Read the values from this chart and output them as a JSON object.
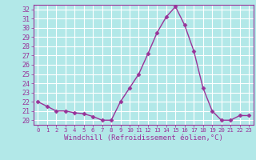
{
  "x": [
    0,
    1,
    2,
    3,
    4,
    5,
    6,
    7,
    8,
    9,
    10,
    11,
    12,
    13,
    14,
    15,
    16,
    17,
    18,
    19,
    20,
    21,
    22,
    23
  ],
  "y": [
    22,
    21.5,
    21,
    21,
    20.8,
    20.7,
    20.4,
    20,
    20,
    22,
    23.5,
    25,
    27.2,
    29.5,
    31.2,
    32.3,
    30.3,
    27.5,
    23.5,
    21,
    20,
    20,
    20.5,
    20.5
  ],
  "line_color": "#993399",
  "marker": "D",
  "marker_size": 2.5,
  "bg_color": "#b2e8e8",
  "grid_color": "#ffffff",
  "title": "Windchill (Refroidissement éolien,°C)",
  "xlim": [
    -0.5,
    23.5
  ],
  "ylim": [
    19.5,
    32.5
  ],
  "yticks": [
    20,
    21,
    22,
    23,
    24,
    25,
    26,
    27,
    28,
    29,
    30,
    31,
    32
  ],
  "xticks": [
    0,
    1,
    2,
    3,
    4,
    5,
    6,
    7,
    8,
    9,
    10,
    11,
    12,
    13,
    14,
    15,
    16,
    17,
    18,
    19,
    20,
    21,
    22,
    23
  ],
  "xlabel_fontsize": 6.5,
  "tick_fontsize": 6.0,
  "axis_color": "#993399",
  "linewidth": 1.0
}
